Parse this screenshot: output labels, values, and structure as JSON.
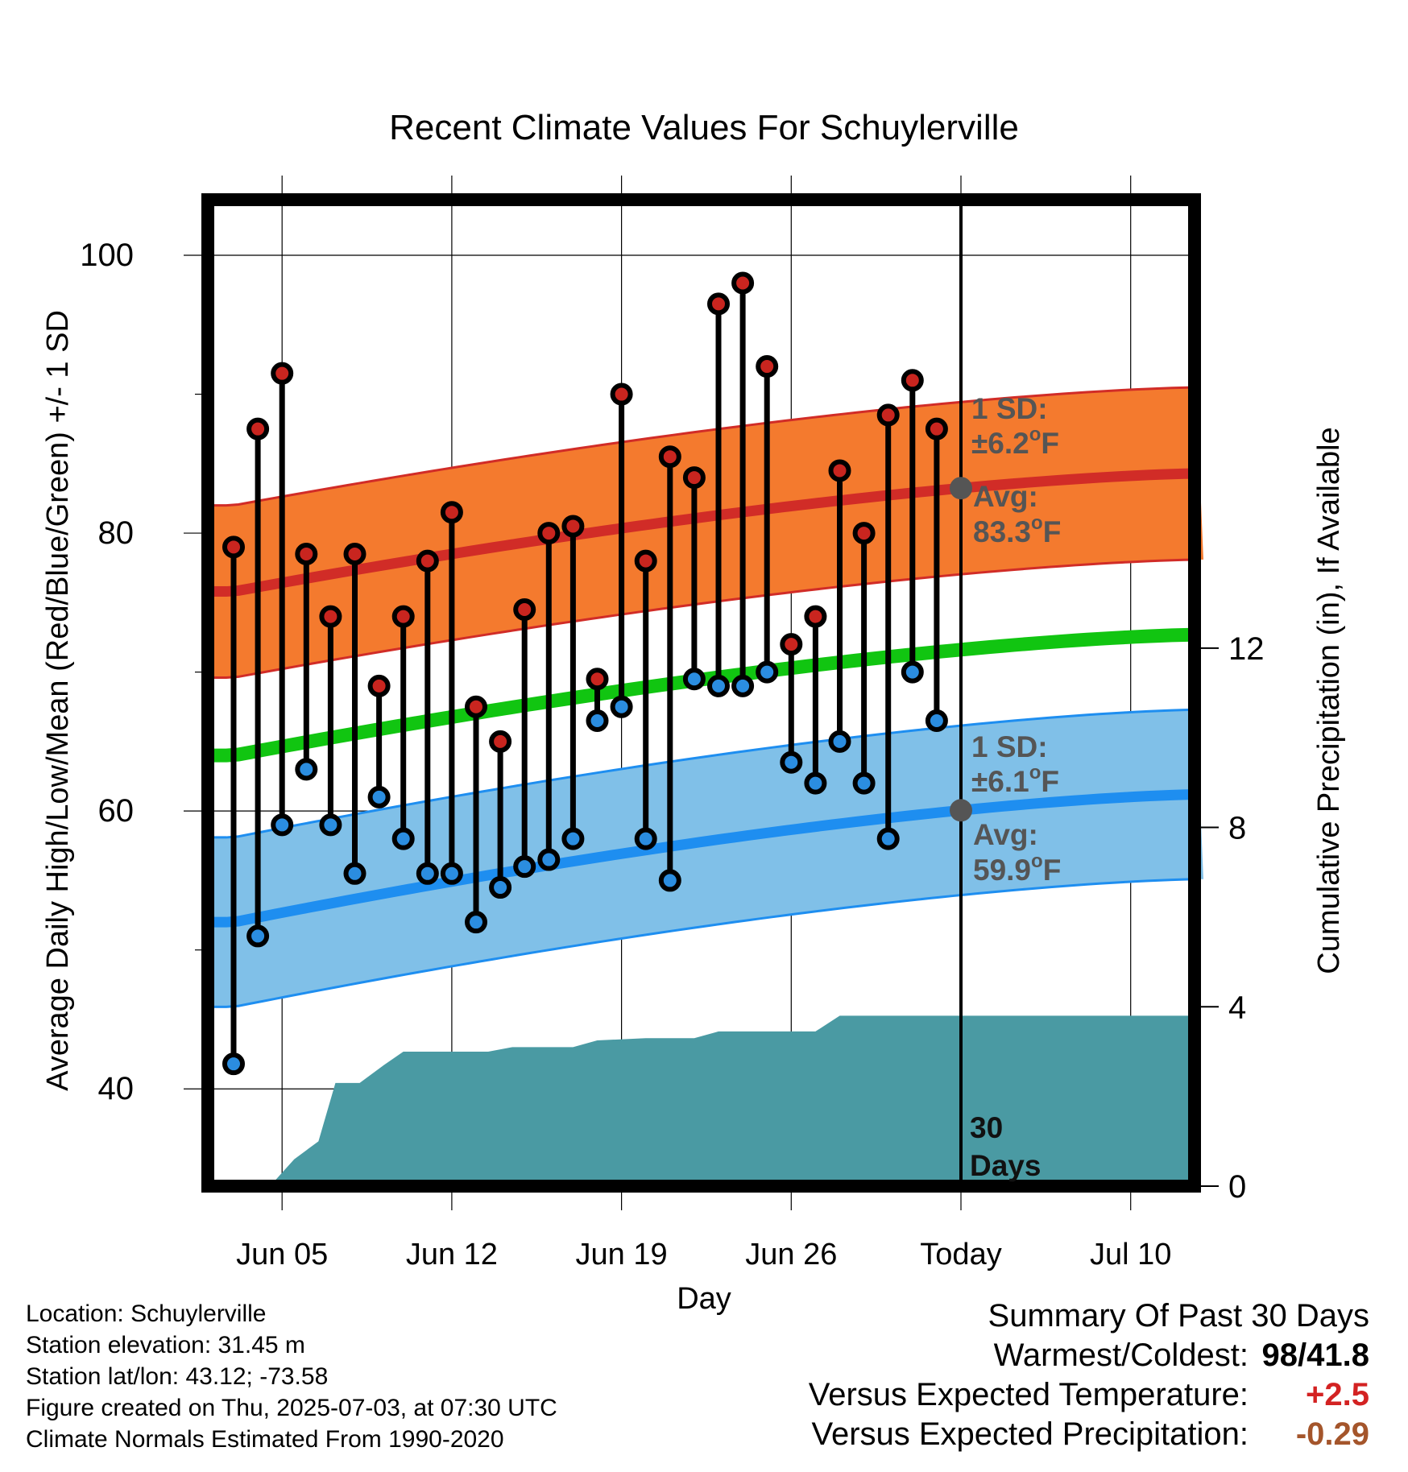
{
  "chart_data": {
    "type": "line",
    "title": "Recent Climate Values For Schuylerville",
    "xlabel": "Day",
    "ylabel": "Average Daily High/Low/Mean (Red/Blue/Green) +/- 1 SD",
    "y2label": "Cumulative Precipitation (in), If Available",
    "ylim": [
      33,
      104
    ],
    "y2lim": [
      0,
      22
    ],
    "x_ticks": [
      "Jun 05",
      "Jun 12",
      "Jun 19",
      "Jun 26",
      "Today",
      "Jul 10"
    ],
    "y_ticks": [
      40,
      60,
      80,
      100
    ],
    "y2_ticks": [
      0,
      4,
      8,
      12
    ],
    "x_dates": [
      "2025-06-03",
      "2025-06-04",
      "2025-06-05",
      "2025-06-06",
      "2025-06-07",
      "2025-06-08",
      "2025-06-09",
      "2025-06-10",
      "2025-06-11",
      "2025-06-12",
      "2025-06-13",
      "2025-06-14",
      "2025-06-15",
      "2025-06-16",
      "2025-06-17",
      "2025-06-18",
      "2025-06-19",
      "2025-06-20",
      "2025-06-21",
      "2025-06-22",
      "2025-06-23",
      "2025-06-24",
      "2025-06-25",
      "2025-06-26",
      "2025-06-27",
      "2025-06-28",
      "2025-06-29",
      "2025-06-30",
      "2025-07-01",
      "2025-07-02"
    ],
    "daily_high": [
      79,
      87.5,
      91.5,
      78.5,
      74,
      78.5,
      69,
      74,
      78,
      81.5,
      67.5,
      65,
      74.5,
      80,
      80.5,
      69.5,
      90,
      78,
      85.5,
      84,
      96.5,
      98,
      92,
      72,
      74,
      84.5,
      80,
      88.5,
      91,
      87.5
    ],
    "daily_low": [
      41.8,
      51,
      59,
      63,
      59,
      55.5,
      61,
      58,
      55.5,
      55.5,
      52,
      54.5,
      56,
      56.5,
      58,
      66.5,
      67.5,
      58,
      55,
      69.5,
      69,
      69,
      70,
      63.5,
      62,
      65,
      62,
      58,
      70,
      66.5
    ],
    "normal_high_avg": [
      [
        0,
        75.8
      ],
      [
        40,
        84.3
      ]
    ],
    "normal_high_sd": 6.2,
    "normal_low_avg": [
      [
        0,
        52
      ],
      [
        40,
        61.2
      ]
    ],
    "normal_low_sd": 6.1,
    "normal_mean": [
      [
        0,
        64
      ],
      [
        40,
        72.7
      ]
    ],
    "precip_cumulative_steps": [
      [
        0,
        0
      ],
      [
        1.5,
        0
      ],
      [
        2.5,
        0.6
      ],
      [
        3.5,
        1.0
      ],
      [
        4.2,
        2.3
      ],
      [
        5.2,
        2.3
      ],
      [
        6.2,
        2.7
      ],
      [
        7,
        3.0
      ],
      [
        9,
        3.0
      ],
      [
        10.5,
        3.0
      ],
      [
        11.5,
        3.1
      ],
      [
        14,
        3.1
      ],
      [
        15,
        3.25
      ],
      [
        17,
        3.3
      ],
      [
        19,
        3.3
      ],
      [
        20,
        3.45
      ],
      [
        24,
        3.45
      ],
      [
        25,
        3.8
      ],
      [
        40,
        3.8
      ]
    ],
    "today_index": 30,
    "grid": true,
    "legend": "none"
  },
  "annotations": {
    "high_sd_label": "1 SD:",
    "high_sd_value": "±6.2°F",
    "high_avg_label": "Avg:",
    "high_avg_value": "83.3°F",
    "low_sd_label": "1 SD:",
    "low_sd_value": "±6.1°F",
    "low_avg_label": "Avg:",
    "low_avg_value": "59.9°F",
    "days_num": "30",
    "days_word": "Days"
  },
  "footer": {
    "location": "Location: Schuylerville",
    "elevation": "Station elevation: 31.45 m",
    "latlon": "Station lat/lon: 43.12; -73.58",
    "created": "Figure created on Thu, 2025-07-03, at 07:30 UTC",
    "normals": "Climate Normals Estimated From 1990-2020"
  },
  "summary": {
    "title": "Summary Of Past 30 Days",
    "warm_cold_label": "Warmest/Coldest:",
    "warmest": "98",
    "coldest": "41.8",
    "temp_label": "Versus Expected Temperature:",
    "temp_value": "+2.5",
    "precip_label": "Versus Expected Precipitation:",
    "precip_value": "-0.29"
  },
  "colors": {
    "high_band": "#f47a2e",
    "high_line": "#d12c27",
    "low_band": "#80c0e8",
    "low_line": "#1e8ef0",
    "mean_line": "#11c511",
    "precip": "#4a9aa3",
    "high_marker": "#c9251f",
    "low_marker": "#2b8de0",
    "annotation": "#555555",
    "positive": "#d32222",
    "negative": "#a4552b"
  }
}
